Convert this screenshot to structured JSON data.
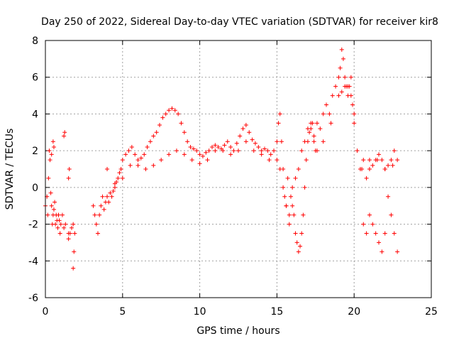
{
  "chart_data": {
    "type": "scatter",
    "title": "Day 250 of 2022, Sidereal Day-to-day VTEC variation (SDTVAR) for receiver kir8",
    "xlabel": "GPS time / hours",
    "ylabel": "SDTVAR / TECUs",
    "xlim": [
      0,
      25
    ],
    "ylim": [
      -6,
      8
    ],
    "xticks": [
      0,
      5,
      10,
      15,
      20,
      25
    ],
    "yticks": [
      -6,
      -4,
      -2,
      0,
      2,
      4,
      6,
      8
    ],
    "xtick_labels": [
      "0",
      "5",
      "10",
      "15",
      "20",
      "25"
    ],
    "ytick_labels": [
      "-6",
      "-4",
      "-2",
      "0",
      "2",
      "4",
      "6",
      "8"
    ],
    "grid": true,
    "marker": "+",
    "color": "#ff0000",
    "series": [
      {
        "name": "SDTVAR",
        "x": [
          0.0,
          0.1,
          0.15,
          0.2,
          0.25,
          0.3,
          0.35,
          0.4,
          0.45,
          0.5,
          0.55,
          0.6,
          0.65,
          0.7,
          0.75,
          0.8,
          0.85,
          0.9,
          0.95,
          1.0,
          1.1,
          1.2,
          1.3,
          1.5,
          1.6,
          1.7,
          1.8,
          1.9,
          3.1,
          3.2,
          3.3,
          3.4,
          3.5,
          3.6,
          3.7,
          3.8,
          3.9,
          4.0,
          4.1,
          4.2,
          4.3,
          4.4,
          4.5,
          4.6,
          4.7,
          4.8,
          4.9,
          5.0,
          5.2,
          5.4,
          5.6,
          5.8,
          6.0,
          6.2,
          6.4,
          6.6,
          6.8,
          7.0,
          7.2,
          7.4,
          7.6,
          7.8,
          8.0,
          8.2,
          8.4,
          8.6,
          8.8,
          9.0,
          9.2,
          9.4,
          9.6,
          9.8,
          10.0,
          10.2,
          10.4,
          10.6,
          10.8,
          11.0,
          11.2,
          11.4,
          11.6,
          11.8,
          12.0,
          12.2,
          12.4,
          12.6,
          12.8,
          13.0,
          13.2,
          13.4,
          13.6,
          13.8,
          14.0,
          14.2,
          14.4,
          14.6,
          14.8,
          15.0,
          15.1,
          15.2,
          15.3,
          15.4,
          15.5,
          15.6,
          15.7,
          15.8,
          15.9,
          16.0,
          16.1,
          16.2,
          16.3,
          16.4,
          16.5,
          16.6,
          16.7,
          16.8,
          16.9,
          17.0,
          17.1,
          17.2,
          17.3,
          17.4,
          17.5,
          17.6,
          17.8,
          18.0,
          18.2,
          18.4,
          18.6,
          18.8,
          19.0,
          19.1,
          19.2,
          19.3,
          19.4,
          19.5,
          19.6,
          19.7,
          19.8,
          19.9,
          20.0,
          20.2,
          20.4,
          20.6,
          20.8,
          21.0,
          21.2,
          21.4,
          21.6,
          21.8,
          22.0,
          22.2,
          22.4,
          22.6,
          22.8,
          1.2,
          1.25,
          1.5,
          1.55,
          1.8,
          1.85,
          1.5,
          0.5,
          0.55,
          0.4,
          4.0,
          4.5,
          5.0,
          5.5,
          6.0,
          6.5,
          7.0,
          7.5,
          8.0,
          8.5,
          9.0,
          9.5,
          10.0,
          10.5,
          11.0,
          11.5,
          12.0,
          12.5,
          13.0,
          13.5,
          14.0,
          14.5,
          15.0,
          15.2,
          15.4,
          15.6,
          15.8,
          16.0,
          16.2,
          16.4,
          16.6,
          16.8,
          17.0,
          17.2,
          17.4,
          17.6,
          18.0,
          18.5,
          19.0,
          19.2,
          19.4,
          19.6,
          19.8,
          20.0,
          20.5,
          21.0,
          21.5,
          22.0,
          22.5,
          20.6,
          20.8,
          21.0,
          21.2,
          21.4,
          21.6,
          21.8,
          22.0,
          22.2,
          22.4,
          22.6,
          22.8
        ],
        "y": [
          -1.0,
          -0.5,
          -1.5,
          0.5,
          2.0,
          1.5,
          -0.3,
          -1.0,
          -2.0,
          -1.5,
          -1.2,
          -0.8,
          -2.0,
          -1.5,
          -1.8,
          -2.2,
          -1.5,
          -1.8,
          -2.5,
          -2.0,
          -1.5,
          -2.2,
          -2.0,
          -2.8,
          -2.5,
          -2.2,
          -2.0,
          -2.5,
          -1.0,
          -1.5,
          -2.0,
          -2.5,
          -1.5,
          -1.0,
          -0.5,
          -1.2,
          -0.8,
          -0.5,
          -0.8,
          -0.3,
          -0.5,
          -0.2,
          0.0,
          0.3,
          0.5,
          0.8,
          1.0,
          1.5,
          1.8,
          2.0,
          2.2,
          1.8,
          1.5,
          1.6,
          1.8,
          2.2,
          2.5,
          2.8,
          3.0,
          3.4,
          3.8,
          4.0,
          4.2,
          4.3,
          4.2,
          4.0,
          3.5,
          3.0,
          2.5,
          2.2,
          2.1,
          2.0,
          1.8,
          1.7,
          1.9,
          2.0,
          2.2,
          2.3,
          2.2,
          2.1,
          2.3,
          2.5,
          2.2,
          2.0,
          2.4,
          2.8,
          3.2,
          3.4,
          3.0,
          2.6,
          2.4,
          2.2,
          2.0,
          2.1,
          2.0,
          1.8,
          2.0,
          2.5,
          3.5,
          4.0,
          2.5,
          1.0,
          -0.5,
          -1.0,
          0.5,
          -1.5,
          -0.5,
          0.0,
          -1.5,
          -2.5,
          -3.0,
          -3.5,
          -3.2,
          -2.5,
          -1.5,
          0.0,
          1.5,
          2.5,
          3.0,
          3.2,
          3.5,
          2.8,
          2.0,
          3.5,
          3.2,
          4.0,
          4.5,
          4.0,
          5.0,
          5.5,
          6.0,
          6.5,
          7.5,
          7.0,
          6.0,
          5.5,
          5.0,
          5.5,
          6.0,
          4.5,
          3.5,
          2.0,
          1.0,
          1.5,
          0.5,
          1.0,
          1.2,
          1.5,
          1.8,
          1.5,
          1.0,
          1.2,
          1.5,
          2.0,
          1.5,
          2.8,
          3.0,
          0.5,
          1.0,
          -4.4,
          -3.5,
          -2.5,
          2.5,
          2.2,
          1.8,
          1.0,
          0.2,
          0.5,
          1.2,
          1.2,
          1.0,
          1.2,
          1.5,
          1.8,
          2.0,
          1.8,
          1.5,
          1.3,
          1.5,
          2.0,
          2.0,
          1.8,
          2.0,
          2.5,
          2.0,
          1.8,
          1.5,
          1.5,
          1.0,
          0.0,
          -1.0,
          -2.0,
          -1.0,
          0.5,
          1.0,
          2.0,
          2.5,
          3.2,
          3.5,
          2.5,
          2.0,
          2.5,
          3.5,
          5.0,
          5.2,
          5.5,
          5.5,
          5.0,
          4.0,
          1.0,
          1.5,
          1.5,
          1.0,
          1.2,
          -2.0,
          -2.5,
          -1.5,
          -2.0,
          -2.5,
          -3.0,
          -3.5,
          -2.5,
          -0.5,
          -1.5,
          -2.5,
          -3.5
        ]
      }
    ]
  }
}
